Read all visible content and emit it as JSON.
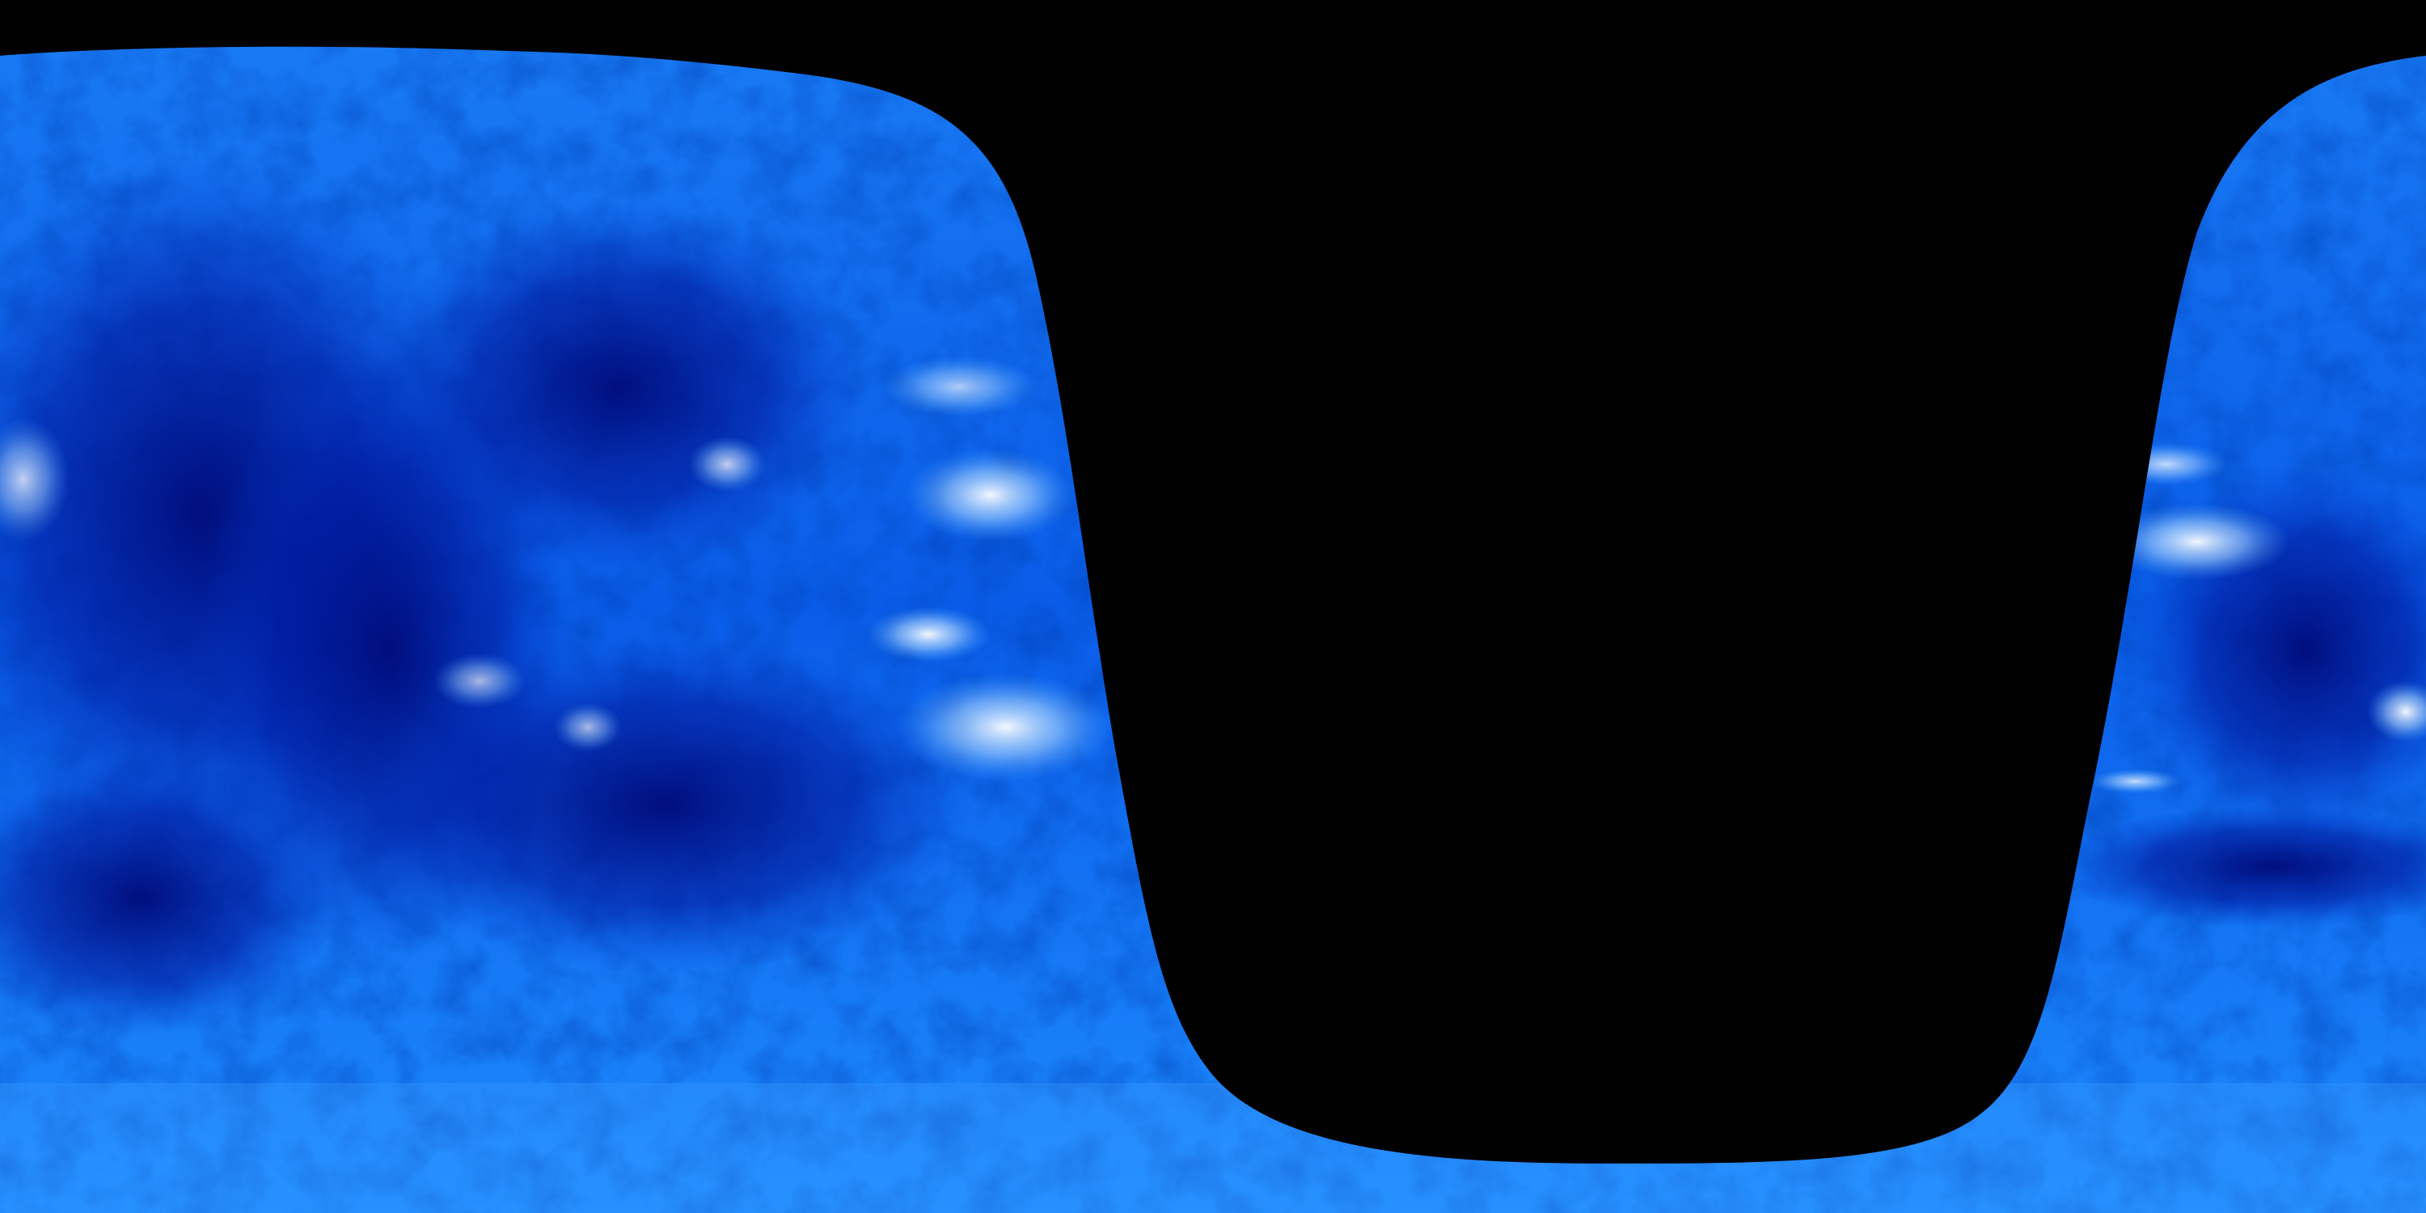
{
  "image": {
    "subject": "solar-euv-synoptic-map",
    "colors": {
      "background": "#000000",
      "base_blue": "#0a6cf0",
      "light_blue": "#2f8fff",
      "dark_blue": "#00149a",
      "deep_blue": "#000a78",
      "highlight": "#ffffff"
    }
  }
}
